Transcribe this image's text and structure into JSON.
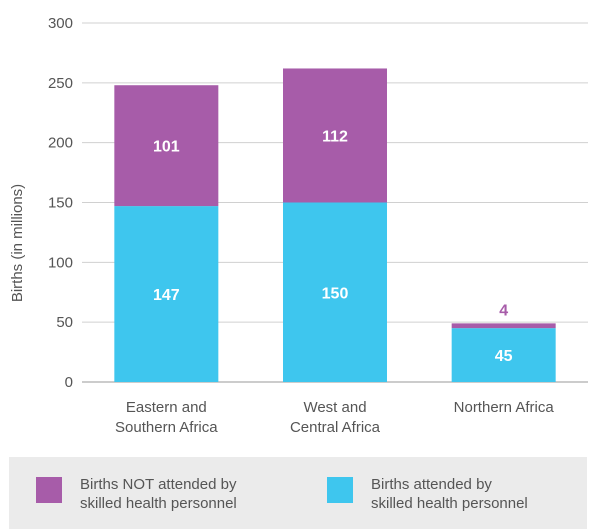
{
  "chart_data": {
    "type": "bar",
    "stacked": true,
    "categories": [
      "Eastern and Southern Africa",
      "West and Central Africa",
      "Northern Africa"
    ],
    "category_lines": [
      [
        "Eastern and",
        "Southern Africa"
      ],
      [
        "West and",
        "Central Africa"
      ],
      [
        "Northern Africa"
      ]
    ],
    "series": [
      {
        "name": "Births attended by skilled health personnel",
        "values": [
          147,
          150,
          45
        ],
        "color": "#3ec6ee"
      },
      {
        "name": "Births NOT attended by skilled health personnel",
        "values": [
          101,
          112,
          4
        ],
        "color": "#a75ca9"
      }
    ],
    "ylabel": "Births (in millions)",
    "ylim": [
      0,
      300
    ],
    "yticks": [
      0,
      50,
      100,
      150,
      200,
      250,
      300
    ],
    "grid": true,
    "legend_position": "bottom"
  },
  "legend": {
    "items": [
      {
        "lines": [
          "Births NOT attended by",
          "skilled health personnel"
        ],
        "color": "#a75ca9"
      },
      {
        "lines": [
          "Births attended by",
          "skilled health personnel"
        ],
        "color": "#3ec6ee"
      }
    ]
  }
}
